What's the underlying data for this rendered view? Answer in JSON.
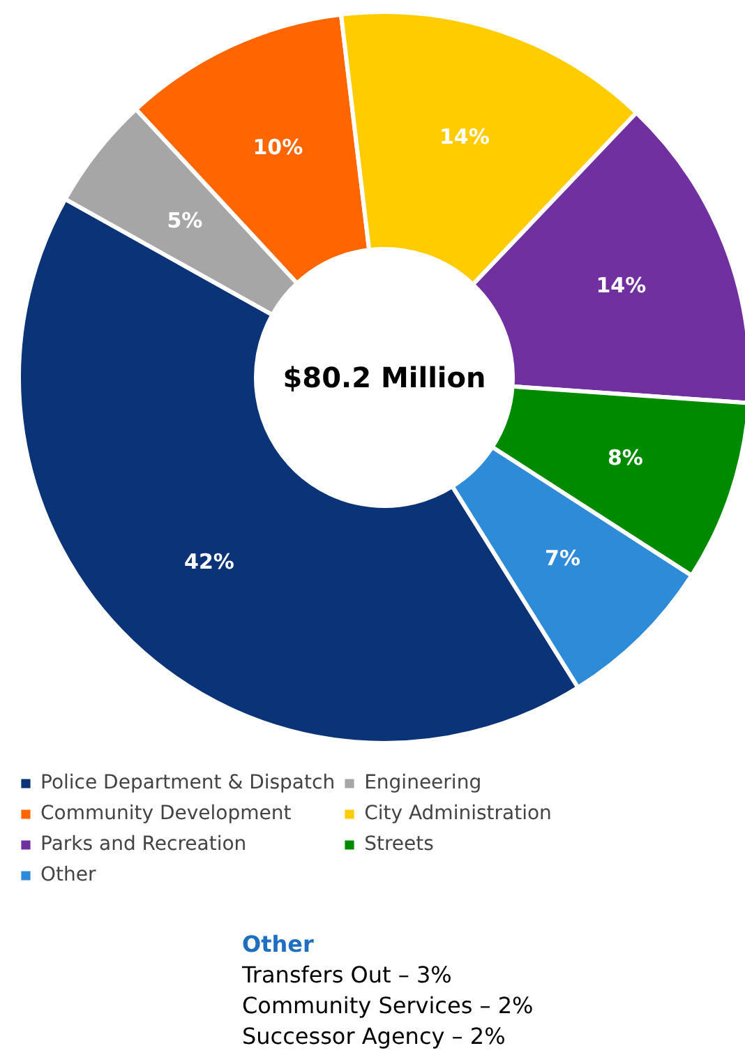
{
  "chart_data": {
    "type": "donut",
    "categories": [
      "Police Department & Dispatch",
      "Engineering",
      "Community Development",
      "City Administration",
      "Parks and Recreation",
      "Streets",
      "Other"
    ],
    "values": [
      42,
      5,
      10,
      14,
      14,
      8,
      7
    ],
    "colors": [
      "#0b3378",
      "#a6a6a6",
      "#ff6600",
      "#ffcc00",
      "#7030a0",
      "#008a00",
      "#2e8bd8"
    ],
    "value_labels": [
      "42%",
      "5%",
      "10%",
      "14%",
      "14%",
      "8%",
      "7%"
    ],
    "legend": "bottom",
    "annotations": [
      "$80.2 Million",
      "Other",
      "Transfers Out – 3%",
      "Community Services – 2%",
      "Successor Agency – 2%"
    ]
  }
}
